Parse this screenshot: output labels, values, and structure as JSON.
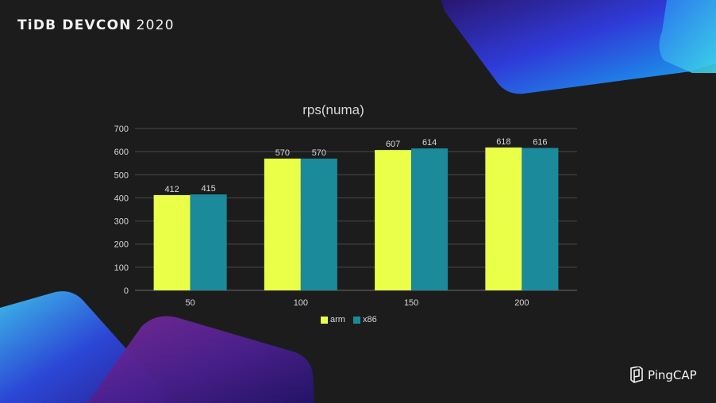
{
  "brand": {
    "title_bold": "TiDB DEVCON",
    "title_year": "2020"
  },
  "logo": {
    "text": "PingCAP",
    "icon": "pingcap-logo-icon"
  },
  "colors": {
    "background": "#1c1c1c",
    "arm": "#eaff47",
    "x86": "#1b8a9a",
    "grid": "#4a4a4a",
    "text": "#d8d8d8"
  },
  "chart_data": {
    "type": "bar",
    "title": "rps(numa)",
    "xlabel": "",
    "ylabel": "",
    "categories": [
      "50",
      "100",
      "150",
      "200"
    ],
    "series": [
      {
        "name": "arm",
        "values": [
          412,
          570,
          607,
          618
        ],
        "color": "#eaff47"
      },
      {
        "name": "x86",
        "values": [
          415,
          570,
          614,
          616
        ],
        "color": "#1b8a9a"
      }
    ],
    "ylim": [
      0,
      700
    ],
    "yticks": [
      0,
      100,
      200,
      300,
      400,
      500,
      600,
      700
    ],
    "grid": true,
    "legend_position": "bottom",
    "data_labels": true
  }
}
